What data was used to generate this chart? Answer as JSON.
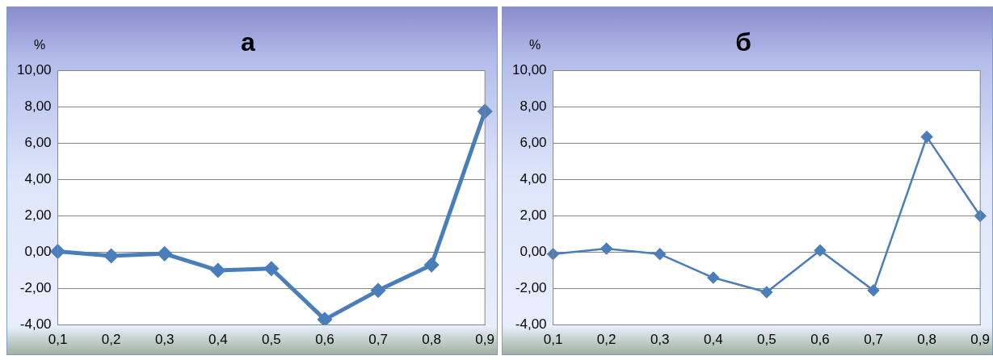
{
  "chart_data": [
    {
      "type": "line",
      "title": "а",
      "ylabel": "%",
      "categories": [
        "0,1",
        "0,2",
        "0,3",
        "0,4",
        "0,5",
        "0,6",
        "0,7",
        "0,8",
        "0,9"
      ],
      "series": [
        {
          "color": "#4a7ebb",
          "values": [
            0.05,
            -0.2,
            -0.08,
            -1.0,
            -0.9,
            -3.7,
            -2.1,
            -0.7,
            7.75
          ]
        }
      ],
      "ylim": [
        -4,
        10
      ],
      "yticks": [
        {
          "value": -4,
          "label": "-4,00"
        },
        {
          "value": -2,
          "label": "-2,00"
        },
        {
          "value": 0,
          "label": "0,00"
        },
        {
          "value": 2,
          "label": "2,00"
        },
        {
          "value": 4,
          "label": "4,00"
        },
        {
          "value": 6,
          "label": "6,00"
        },
        {
          "value": 8,
          "label": "8,00"
        },
        {
          "value": 10,
          "label": "10,00"
        }
      ],
      "grid": "y",
      "marker": "diamond",
      "line_style": "solid"
    },
    {
      "type": "line",
      "title": "б",
      "ylabel": "%",
      "categories": [
        "0,1",
        "0,2",
        "0,3",
        "0,4",
        "0,5",
        "0,6",
        "0,7",
        "0,8",
        "0,9"
      ],
      "series": [
        {
          "color": "#4a7ebb",
          "values": [
            -0.1,
            0.2,
            -0.1,
            -1.4,
            -2.2,
            0.1,
            -2.1,
            6.35,
            2.0
          ]
        }
      ],
      "ylim": [
        -4,
        10
      ],
      "yticks": [
        {
          "value": -4,
          "label": "-4,00"
        },
        {
          "value": -2,
          "label": "-2,00"
        },
        {
          "value": 0,
          "label": "0,00"
        },
        {
          "value": 2,
          "label": "2,00"
        },
        {
          "value": 4,
          "label": "4,00"
        },
        {
          "value": 6,
          "label": "6,00"
        },
        {
          "value": 8,
          "label": "8,00"
        },
        {
          "value": 10,
          "label": "10,00"
        }
      ],
      "grid": "y",
      "marker": "diamond",
      "line_style": "solid"
    }
  ]
}
